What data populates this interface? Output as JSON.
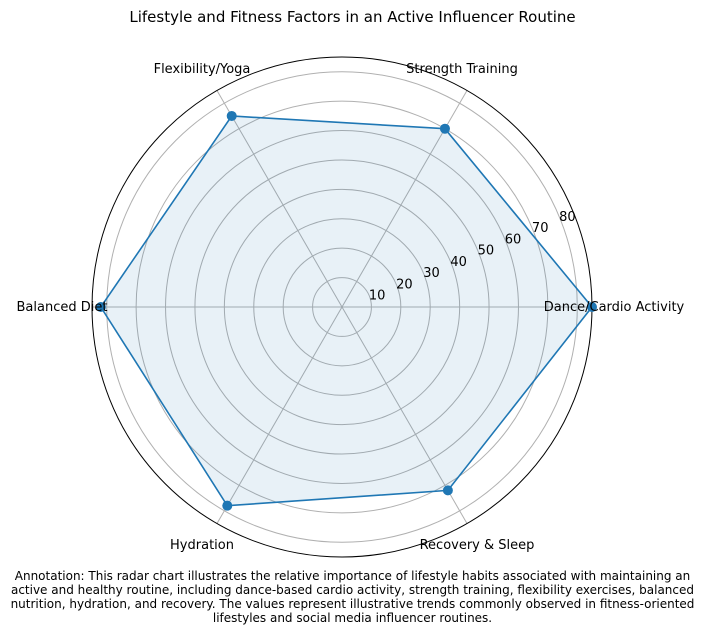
{
  "chart_data": {
    "type": "radar",
    "title": "Lifestyle and Fitness Factors in an Active Influencer Routine",
    "categories": [
      "Dance/Cardio Activity",
      "Strength Training",
      "Flexibility/Yoga",
      "Balanced Diet",
      "Hydration",
      "Recovery & Sleep"
    ],
    "values": [
      85,
      70,
      75,
      82,
      78,
      72
    ],
    "rticks": [
      "10",
      "20",
      "30",
      "40",
      "50",
      "60",
      "70",
      "80"
    ],
    "rticks_values": [
      10,
      20,
      30,
      40,
      50,
      60,
      70,
      80
    ],
    "rlim": [
      0,
      85
    ],
    "grid": true,
    "series_color": "#1f77b4",
    "fill_color": "#1f77b4"
  },
  "annotation": "Annotation: This radar chart illustrates the relative importance of lifestyle habits associated with maintaining an active and healthy routine, including dance-based cardio activity, strength training, flexibility exercises, balanced nutrition, hydration, and recovery. The values represent illustrative trends commonly observed in fitness-oriented lifestyles and social media influencer routines."
}
